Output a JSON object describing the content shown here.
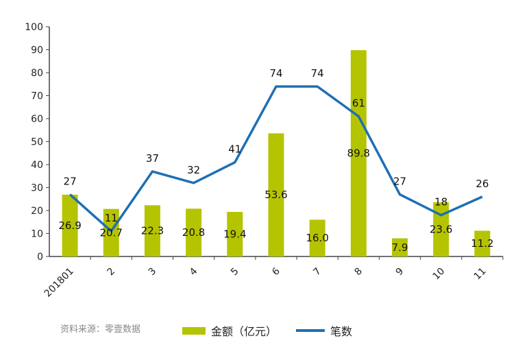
{
  "chart_data": {
    "type": "bar",
    "categories": [
      "201801",
      "2",
      "3",
      "4",
      "5",
      "6",
      "7",
      "8",
      "9",
      "10",
      "11"
    ],
    "series": [
      {
        "name": "金额（亿元）",
        "type": "bar",
        "color": "#b5c400",
        "values": [
          26.9,
          20.7,
          22.3,
          20.8,
          19.4,
          53.6,
          16.0,
          89.8,
          7.9,
          23.6,
          11.2
        ],
        "labels": [
          "26.9",
          "20.7",
          "22.3",
          "20.8",
          "19.4",
          "53.6",
          "16.0",
          "89.8",
          "7.9",
          "23.6",
          "11.2"
        ]
      },
      {
        "name": "笔数",
        "type": "line",
        "color": "#1e6fb4",
        "values": [
          27,
          11,
          37,
          32,
          41,
          74,
          74,
          61,
          27,
          18,
          26
        ],
        "labels": [
          "27",
          "11",
          "37",
          "32",
          "41",
          "74",
          "74",
          "61",
          "27",
          "18",
          "26"
        ]
      }
    ],
    "ylim": [
      0,
      100
    ],
    "yticks": [
      "0",
      "10",
      "20",
      "30",
      "40",
      "50",
      "60",
      "70",
      "80",
      "90",
      "100"
    ],
    "grid": false,
    "legend_position": "bottom"
  },
  "source_note": "资料来源：零壹数据"
}
